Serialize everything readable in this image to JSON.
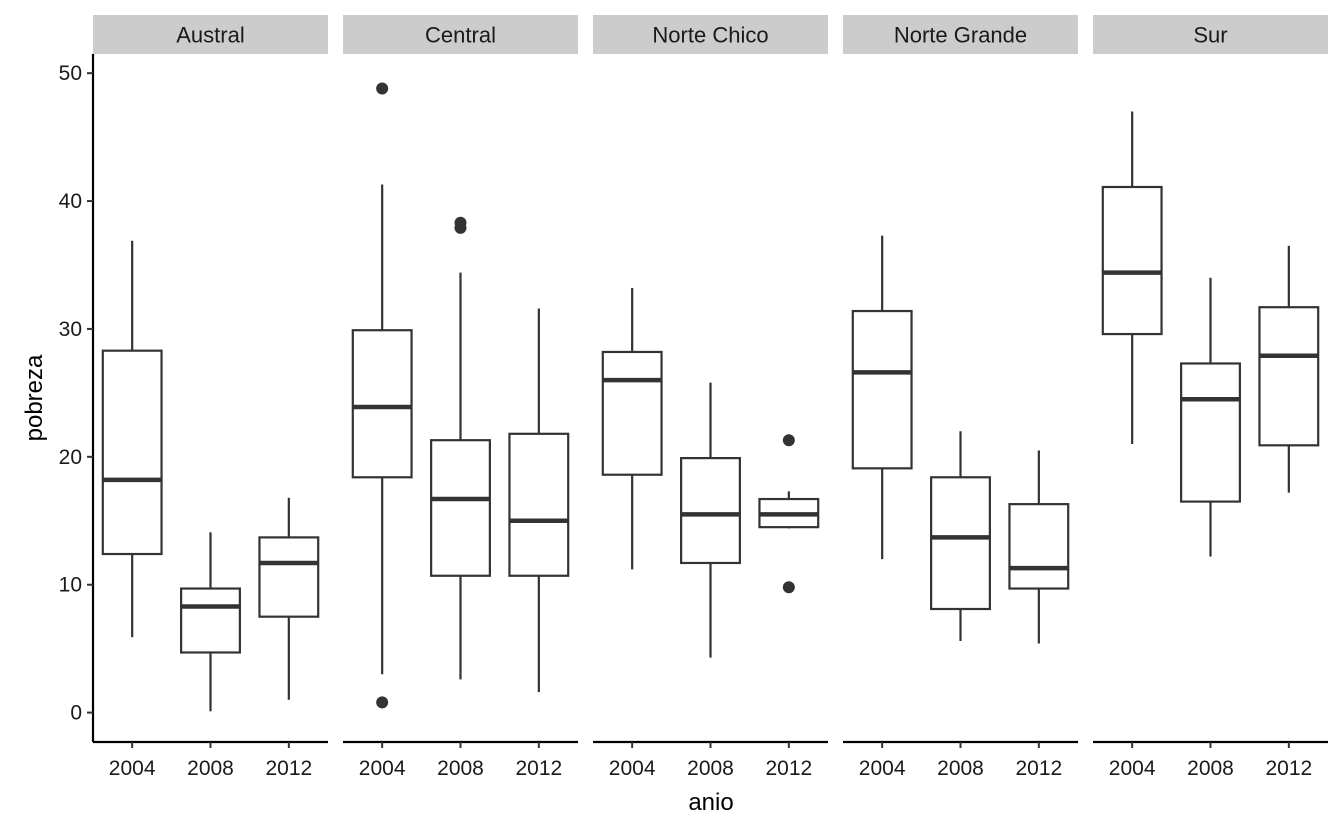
{
  "chart_data": {
    "type": "boxplot",
    "xlabel": "anio",
    "ylabel": "pobreza",
    "ylim": [
      -2.3,
      51.5
    ],
    "y_ticks": [
      0,
      10,
      20,
      30,
      40,
      50
    ],
    "categories": [
      "2004",
      "2008",
      "2012"
    ],
    "grid": false,
    "facets": [
      {
        "name": "Austral",
        "boxes": [
          {
            "x": "2004",
            "min": 5.9,
            "q1": 12.4,
            "median": 18.2,
            "q3": 28.3,
            "max": 36.9,
            "outliers": []
          },
          {
            "x": "2008",
            "min": 0.1,
            "q1": 4.7,
            "median": 8.3,
            "q3": 9.7,
            "max": 14.1,
            "outliers": []
          },
          {
            "x": "2012",
            "min": 1.0,
            "q1": 7.5,
            "median": 11.7,
            "q3": 13.7,
            "max": 16.8,
            "outliers": []
          }
        ]
      },
      {
        "name": "Central",
        "boxes": [
          {
            "x": "2004",
            "min": 3.0,
            "q1": 18.4,
            "median": 23.9,
            "q3": 29.9,
            "max": 41.3,
            "outliers": [
              48.8,
              0.8
            ]
          },
          {
            "x": "2008",
            "min": 2.6,
            "q1": 10.7,
            "median": 16.7,
            "q3": 21.3,
            "max": 34.4,
            "outliers": [
              38.3,
              37.9
            ]
          },
          {
            "x": "2012",
            "min": 1.6,
            "q1": 10.7,
            "median": 15.0,
            "q3": 21.8,
            "max": 31.6,
            "outliers": []
          }
        ]
      },
      {
        "name": "Norte Chico",
        "boxes": [
          {
            "x": "2004",
            "min": 11.2,
            "q1": 18.6,
            "median": 26.0,
            "q3": 28.2,
            "max": 33.2,
            "outliers": []
          },
          {
            "x": "2008",
            "min": 4.3,
            "q1": 11.7,
            "median": 15.5,
            "q3": 19.9,
            "max": 25.8,
            "outliers": []
          },
          {
            "x": "2012",
            "min": 14.4,
            "q1": 14.5,
            "median": 15.5,
            "q3": 16.7,
            "max": 17.3,
            "outliers": [
              21.3,
              9.8
            ]
          }
        ]
      },
      {
        "name": "Norte Grande",
        "boxes": [
          {
            "x": "2004",
            "min": 12.0,
            "q1": 19.1,
            "median": 26.6,
            "q3": 31.4,
            "max": 37.3,
            "outliers": []
          },
          {
            "x": "2008",
            "min": 5.6,
            "q1": 8.1,
            "median": 13.7,
            "q3": 18.4,
            "max": 22.0,
            "outliers": []
          },
          {
            "x": "2012",
            "min": 5.4,
            "q1": 9.7,
            "median": 11.3,
            "q3": 16.3,
            "max": 20.5,
            "outliers": []
          }
        ]
      },
      {
        "name": "Sur",
        "boxes": [
          {
            "x": "2004",
            "min": 21.0,
            "q1": 29.6,
            "median": 34.4,
            "q3": 41.1,
            "max": 47.0,
            "outliers": []
          },
          {
            "x": "2008",
            "min": 12.2,
            "q1": 16.5,
            "median": 24.5,
            "q3": 27.3,
            "max": 34.0,
            "outliers": []
          },
          {
            "x": "2012",
            "min": 17.2,
            "q1": 20.9,
            "median": 27.9,
            "q3": 31.7,
            "max": 36.5,
            "outliers": []
          }
        ]
      }
    ]
  }
}
